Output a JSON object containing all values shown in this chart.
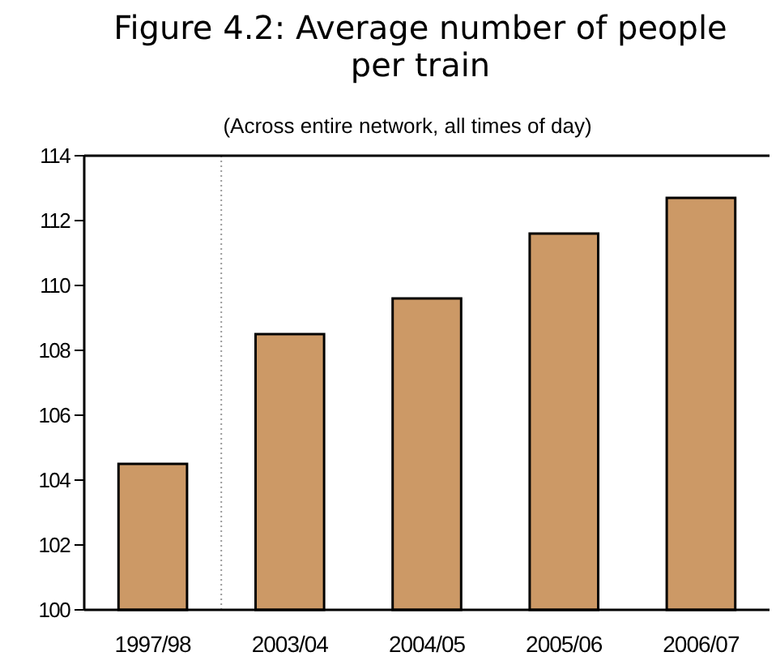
{
  "chart_data": {
    "type": "bar",
    "title": "Figure 4.2: Average number of people per train",
    "subtitle": "(Across entire network, all times of day)",
    "categories": [
      "1997/98",
      "2003/04",
      "2004/05",
      "2005/06",
      "2006/07"
    ],
    "values": [
      104.5,
      108.5,
      109.6,
      111.6,
      112.7
    ],
    "color": "#cc9966",
    "ylim": [
      100,
      114
    ],
    "yticks": [
      100,
      102,
      104,
      106,
      108,
      110,
      112,
      114
    ],
    "grid": false
  }
}
